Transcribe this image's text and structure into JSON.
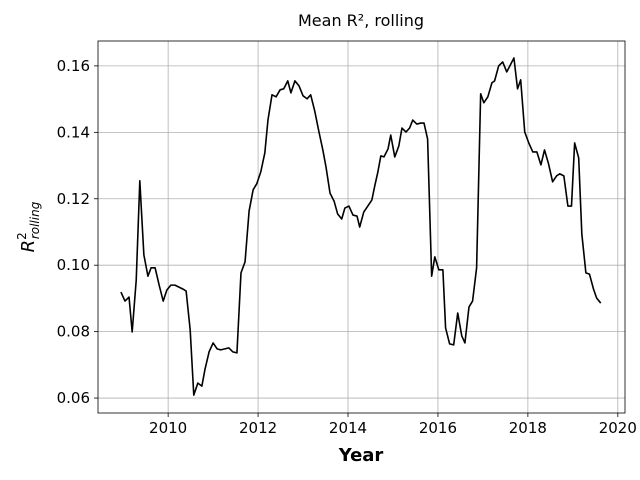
{
  "chart_data": {
    "type": "line",
    "title": "Mean R², rolling",
    "xlabel": "Year",
    "ylabel": {
      "symbol": "R",
      "superscript": "2",
      "subscript": "rolling"
    },
    "xlim": [
      2008.44,
      2020.16
    ],
    "ylim": [
      0.0555,
      0.1675
    ],
    "xticks": [
      2010,
      2012,
      2014,
      2016,
      2018,
      2020
    ],
    "yticks": [
      0.06,
      0.08,
      {
        "value": 0.1,
        "label": "0.10"
      },
      0.12,
      0.14,
      0.16
    ],
    "grid": true,
    "x": [
      2008.95,
      2009.04,
      2009.13,
      2009.2,
      2009.29,
      2009.37,
      2009.46,
      2009.55,
      2009.62,
      2009.71,
      2009.8,
      2009.89,
      2009.97,
      2010.06,
      2010.15,
      2010.24,
      2010.33,
      2010.4,
      2010.49,
      2010.57,
      2010.66,
      2010.75,
      2010.82,
      2010.91,
      2011.0,
      2011.09,
      2011.17,
      2011.26,
      2011.35,
      2011.44,
      2011.53,
      2011.62,
      2011.71,
      2011.8,
      2011.89,
      2011.97,
      2012.06,
      2012.15,
      2012.22,
      2012.31,
      2012.4,
      2012.49,
      2012.57,
      2012.66,
      2012.73,
      2012.82,
      2012.91,
      2013.0,
      2013.09,
      2013.17,
      2013.26,
      2013.35,
      2013.44,
      2013.51,
      2013.6,
      2013.69,
      2013.77,
      2013.86,
      2013.93,
      2014.02,
      2014.11,
      2014.2,
      2014.26,
      2014.35,
      2014.44,
      2014.53,
      2014.6,
      2014.66,
      2014.73,
      2014.8,
      2014.89,
      2014.95,
      2015.04,
      2015.13,
      2015.2,
      2015.29,
      2015.37,
      2015.44,
      2015.53,
      2015.62,
      2015.69,
      2015.77,
      2015.86,
      2015.93,
      2016.02,
      2016.11,
      2016.17,
      2016.26,
      2016.35,
      2016.44,
      2016.53,
      2016.6,
      2016.69,
      2016.77,
      2016.86,
      2016.95,
      2017.02,
      2017.11,
      2017.2,
      2017.26,
      2017.35,
      2017.44,
      2017.53,
      2017.6,
      2017.69,
      2017.77,
      2017.84,
      2017.93,
      2018.02,
      2018.11,
      2018.2,
      2018.29,
      2018.37,
      2018.46,
      2018.55,
      2018.64,
      2018.71,
      2018.8,
      2018.89,
      2018.97,
      2019.04,
      2019.13,
      2019.2,
      2019.29,
      2019.37,
      2019.46,
      2019.53,
      2019.62
    ],
    "series": [
      {
        "color": "#000000",
        "values": [
          0.0919,
          0.0892,
          0.0904,
          0.0799,
          0.0955,
          0.1254,
          0.1031,
          0.0967,
          0.0992,
          0.0992,
          0.094,
          0.0892,
          0.0925,
          0.094,
          0.094,
          0.0934,
          0.0928,
          0.0922,
          0.0805,
          0.0609,
          0.0645,
          0.0636,
          0.0687,
          0.0739,
          0.0766,
          0.0748,
          0.0745,
          0.0748,
          0.0751,
          0.0739,
          0.0736,
          0.0977,
          0.101,
          0.1163,
          0.1227,
          0.1245,
          0.1281,
          0.1338,
          0.1437,
          0.1513,
          0.1507,
          0.1528,
          0.1531,
          0.1555,
          0.1519,
          0.1555,
          0.154,
          0.151,
          0.1501,
          0.1513,
          0.1464,
          0.1404,
          0.1347,
          0.1296,
          0.1217,
          0.1193,
          0.1154,
          0.1139,
          0.1172,
          0.1178,
          0.1151,
          0.1148,
          0.1115,
          0.116,
          0.1178,
          0.1196,
          0.1242,
          0.1278,
          0.1329,
          0.1326,
          0.135,
          0.1392,
          0.1326,
          0.1359,
          0.1413,
          0.1401,
          0.1413,
          0.1437,
          0.1425,
          0.1428,
          0.1428,
          0.138,
          0.0967,
          0.1025,
          0.0986,
          0.0986,
          0.0811,
          0.0763,
          0.076,
          0.0856,
          0.0787,
          0.0766,
          0.0874,
          0.0892,
          0.0992,
          0.1516,
          0.1489,
          0.1507,
          0.1549,
          0.1555,
          0.16,
          0.1612,
          0.1582,
          0.16,
          0.1624,
          0.1531,
          0.1558,
          0.1401,
          0.1368,
          0.1341,
          0.1341,
          0.1302,
          0.1347,
          0.1305,
          0.1251,
          0.1269,
          0.1275,
          0.1269,
          0.1178,
          0.1178,
          0.1368,
          0.1323,
          0.1094,
          0.0977,
          0.0973,
          0.0928,
          0.0901,
          0.0886
        ]
      }
    ]
  }
}
